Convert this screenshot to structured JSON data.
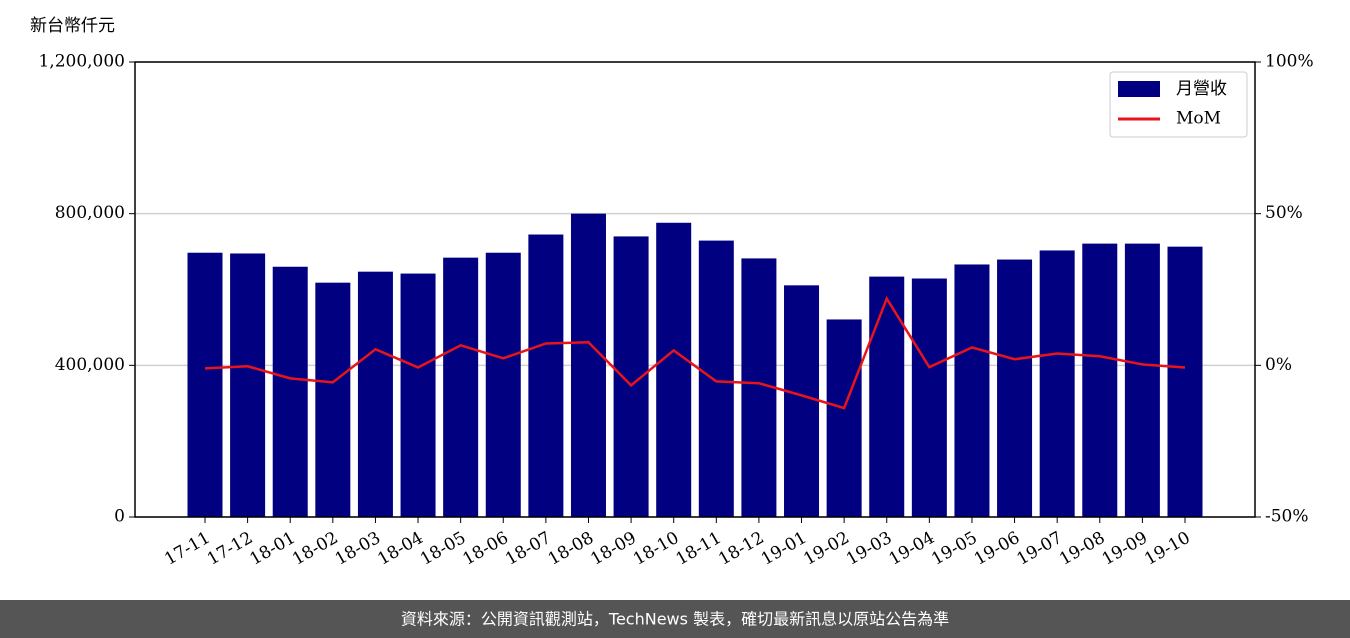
{
  "chart_data": {
    "type": "bar_line",
    "y_label": "新台幣仟元",
    "categories": [
      "17-11",
      "17-12",
      "18-01",
      "18-02",
      "18-03",
      "18-04",
      "18-05",
      "18-06",
      "18-07",
      "18-08",
      "18-09",
      "18-10",
      "18-11",
      "18-12",
      "19-01",
      "19-02",
      "19-03",
      "19-04",
      "19-05",
      "19-06",
      "19-07",
      "19-08",
      "19-09",
      "19-10"
    ],
    "series": [
      {
        "name": "月營收",
        "type": "bar",
        "color": "#000080",
        "values": [
          697000,
          695000,
          660000,
          618000,
          647000,
          642000,
          684000,
          697000,
          745000,
          800000,
          740000,
          776000,
          729000,
          682000,
          611000,
          521000,
          634000,
          629000,
          666000,
          679000,
          703000,
          721000,
          721000,
          713000
        ]
      },
      {
        "name": "MoM",
        "type": "line",
        "axis": "y2",
        "color": "#e8141a",
        "values": [
          -1.0,
          -0.3,
          -4.3,
          -5.6,
          5.3,
          -0.7,
          6.6,
          2.3,
          7.2,
          7.6,
          -6.6,
          4.9,
          -5.3,
          -5.9,
          -9.9,
          -14.1,
          22.0,
          -0.6,
          5.9,
          2.0,
          3.9,
          3.0,
          0.3,
          -0.7
        ]
      }
    ],
    "ylim": [
      0,
      1200000
    ],
    "yticks": [
      0,
      {
        "value": 400000,
        "label": "400,000"
      },
      {
        "value": 800000,
        "label": "800,000"
      },
      {
        "value": 1200000,
        "label": "1,200,000"
      }
    ],
    "y2lim": [
      -50,
      100
    ],
    "y2ticks": [
      {
        "value": -50,
        "label": "-50%"
      },
      {
        "value": 0,
        "label": "0%"
      },
      {
        "value": 50,
        "label": "50%"
      },
      {
        "value": 100,
        "label": "100%"
      }
    ],
    "grid": true,
    "legend": "upper right"
  },
  "footer": "資料來源：公開資訊觀測站，TechNews 製表，確切最新訊息以原站公告為準"
}
